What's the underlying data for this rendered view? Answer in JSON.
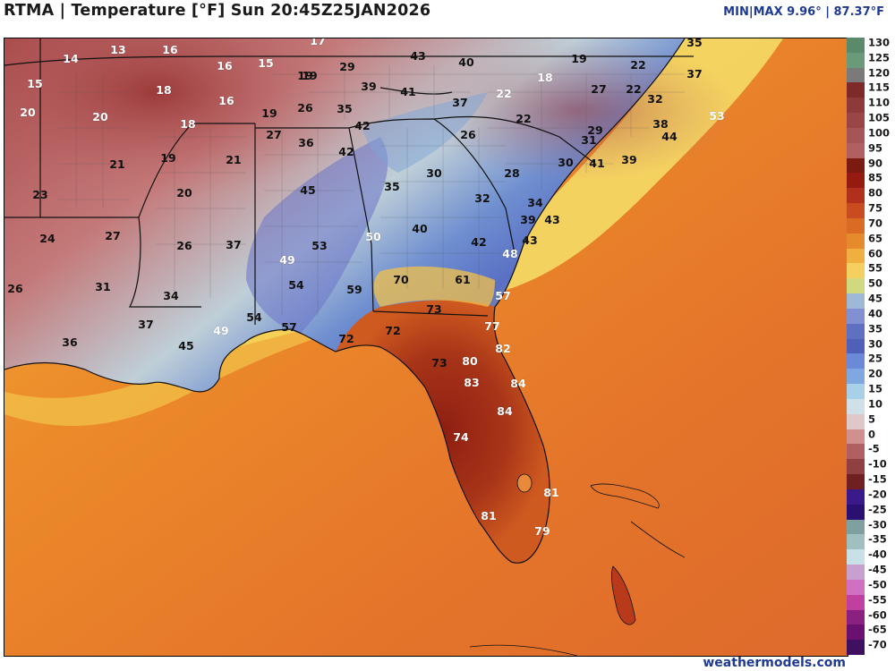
{
  "header": {
    "title": "RTMA | Temperature [°F]  Sun 20:45Z25JAN2026",
    "minmax": "MIN|MAX 9.96°  |  87.37°F"
  },
  "footer": {
    "credit": "weathermodels.com"
  },
  "colors": {
    "ocean_warm": "#e67e22",
    "hot_core": "#8b1a10",
    "cold_red": "#b05050",
    "cool_blue": "#4a6fc8",
    "border_line": "#111111"
  },
  "colorbar": {
    "ticks": [
      "130",
      "125",
      "120",
      "115",
      "110",
      "105",
      "100",
      "95",
      "90",
      "85",
      "80",
      "75",
      "70",
      "65",
      "60",
      "55",
      "50",
      "45",
      "40",
      "35",
      "30",
      "25",
      "20",
      "15",
      "10",
      "5",
      "0",
      "-5",
      "-10",
      "-15",
      "-20",
      "-25",
      "-30",
      "-35",
      "-40",
      "-45",
      "-50",
      "-55",
      "-60",
      "-65",
      "-70"
    ]
  },
  "station_values": [
    {
      "t": "17",
      "c": "white"
    },
    {
      "t": "13",
      "c": "white"
    },
    {
      "t": "16",
      "c": "white"
    },
    {
      "t": "14",
      "c": "white"
    },
    {
      "t": "15",
      "c": "white"
    },
    {
      "t": "16",
      "c": "white"
    },
    {
      "t": "15",
      "c": "white"
    },
    {
      "t": "18",
      "c": "white"
    },
    {
      "t": "16",
      "c": "white"
    },
    {
      "t": "20",
      "c": "white"
    },
    {
      "t": "20",
      "c": "white"
    },
    {
      "t": "18",
      "c": "white"
    },
    {
      "t": "19",
      "c": "black"
    },
    {
      "t": "19",
      "c": "black"
    },
    {
      "t": "21",
      "c": "black"
    },
    {
      "t": "19",
      "c": "black"
    },
    {
      "t": "21",
      "c": "black"
    },
    {
      "t": "20",
      "c": "black"
    },
    {
      "t": "23",
      "c": "black"
    },
    {
      "t": "24",
      "c": "black"
    },
    {
      "t": "27",
      "c": "black"
    },
    {
      "t": "26",
      "c": "black"
    },
    {
      "t": "37",
      "c": "black"
    },
    {
      "t": "26",
      "c": "black"
    },
    {
      "t": "31",
      "c": "black"
    },
    {
      "t": "34",
      "c": "black"
    },
    {
      "t": "37",
      "c": "black"
    },
    {
      "t": "36",
      "c": "black"
    },
    {
      "t": "45",
      "c": "black"
    },
    {
      "t": "49",
      "c": "white"
    },
    {
      "t": "54",
      "c": "black"
    },
    {
      "t": "57",
      "c": "black"
    },
    {
      "t": "29",
      "c": "black"
    },
    {
      "t": "43",
      "c": "black"
    },
    {
      "t": "40",
      "c": "black"
    },
    {
      "t": "19",
      "c": "black"
    },
    {
      "t": "26",
      "c": "black"
    },
    {
      "t": "39",
      "c": "black"
    },
    {
      "t": "35",
      "c": "black"
    },
    {
      "t": "41",
      "c": "black"
    },
    {
      "t": "37",
      "c": "black"
    },
    {
      "t": "42",
      "c": "black"
    },
    {
      "t": "27",
      "c": "black"
    },
    {
      "t": "36",
      "c": "black"
    },
    {
      "t": "42",
      "c": "black"
    },
    {
      "t": "45",
      "c": "black"
    },
    {
      "t": "35",
      "c": "black"
    },
    {
      "t": "53",
      "c": "black"
    },
    {
      "t": "49",
      "c": "white"
    },
    {
      "t": "54",
      "c": "black"
    },
    {
      "t": "50",
      "c": "white"
    },
    {
      "t": "40",
      "c": "black"
    },
    {
      "t": "59",
      "c": "black"
    },
    {
      "t": "70",
      "c": "black"
    },
    {
      "t": "61",
      "c": "black"
    },
    {
      "t": "42",
      "c": "black"
    },
    {
      "t": "48",
      "c": "white"
    },
    {
      "t": "57",
      "c": "white"
    },
    {
      "t": "73",
      "c": "black"
    },
    {
      "t": "77",
      "c": "white"
    },
    {
      "t": "72",
      "c": "black"
    },
    {
      "t": "72",
      "c": "black"
    },
    {
      "t": "73",
      "c": "black"
    },
    {
      "t": "80",
      "c": "white"
    },
    {
      "t": "82",
      "c": "white"
    },
    {
      "t": "83",
      "c": "white"
    },
    {
      "t": "84",
      "c": "white"
    },
    {
      "t": "84",
      "c": "white"
    },
    {
      "t": "74",
      "c": "white"
    },
    {
      "t": "81",
      "c": "white"
    },
    {
      "t": "81",
      "c": "white"
    },
    {
      "t": "79",
      "c": "white"
    },
    {
      "t": "26",
      "c": "black"
    },
    {
      "t": "30",
      "c": "black"
    },
    {
      "t": "32",
      "c": "black"
    },
    {
      "t": "28",
      "c": "black"
    },
    {
      "t": "34",
      "c": "black"
    },
    {
      "t": "39",
      "c": "black"
    },
    {
      "t": "43",
      "c": "black"
    },
    {
      "t": "43",
      "c": "black"
    },
    {
      "t": "19",
      "c": "black"
    },
    {
      "t": "22",
      "c": "black"
    },
    {
      "t": "18",
      "c": "white"
    },
    {
      "t": "22",
      "c": "white"
    },
    {
      "t": "22",
      "c": "black"
    },
    {
      "t": "27",
      "c": "black"
    },
    {
      "t": "22",
      "c": "black"
    },
    {
      "t": "32",
      "c": "black"
    },
    {
      "t": "37",
      "c": "black"
    },
    {
      "t": "35",
      "c": "black"
    },
    {
      "t": "29",
      "c": "black"
    },
    {
      "t": "31",
      "c": "black"
    },
    {
      "t": "30",
      "c": "black"
    },
    {
      "t": "41",
      "c": "black"
    },
    {
      "t": "39",
      "c": "black"
    },
    {
      "t": "38",
      "c": "black"
    },
    {
      "t": "44",
      "c": "black"
    },
    {
      "t": "53",
      "c": "white"
    }
  ]
}
